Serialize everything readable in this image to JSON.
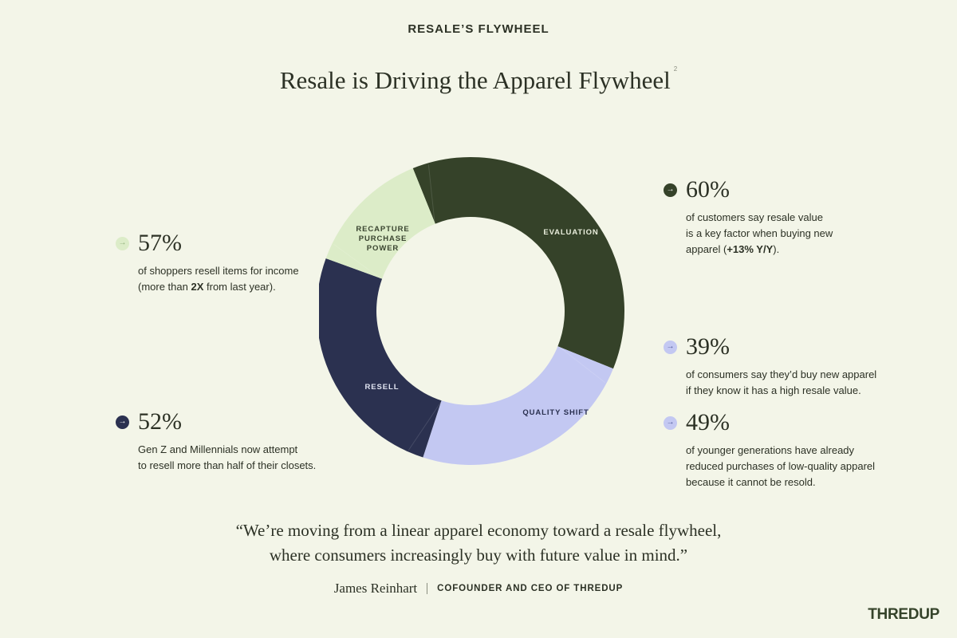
{
  "header": {
    "eyebrow": "RESALE’S FLYWHEEL",
    "title": "Resale is Driving the Apparel Flywheel",
    "footnote": "2"
  },
  "flywheel": {
    "segments": [
      {
        "label_lines": [
          "EVALUATION"
        ],
        "color": "#354229",
        "text_color": "#e9eddc"
      },
      {
        "label_lines": [
          "QUALITY SHIFT"
        ],
        "color": "#c3c8f2",
        "text_color": "#2a3050"
      },
      {
        "label_lines": [
          "RESELL"
        ],
        "color": "#2b3150",
        "text_color": "#e2e5f2"
      },
      {
        "label_lines": [
          "RECAPTURE",
          "PURCHASE",
          "POWER"
        ],
        "color": "#dcecc8",
        "text_color": "#3a4530"
      }
    ]
  },
  "stats": {
    "s57": {
      "pct": "57%",
      "lines": [
        "of shoppers resell items for income",
        "(more than ",
        "2X",
        " from last year)."
      ],
      "dot_color": "#dcecc8",
      "arrow_color": "#8fb07a"
    },
    "s52": {
      "pct": "52%",
      "lines": [
        "Gen Z and Millennials now attempt",
        "to resell more than half of their closets."
      ],
      "dot_color": "#2b3150",
      "arrow_color": "#ffffff"
    },
    "s60": {
      "pct": "60%",
      "lines": [
        "of customers say resale value",
        "is a key factor when buying new",
        "apparel (",
        "+13% Y/Y",
        ")."
      ],
      "dot_color": "#354229",
      "arrow_color": "#ffffff"
    },
    "s39": {
      "pct": "39%",
      "lines": [
        "of consumers say they’d buy new apparel",
        "if they know it has a high resale value."
      ],
      "dot_color": "#c3c8f2",
      "arrow_color": "#4b5596"
    },
    "s49": {
      "pct": "49%",
      "lines": [
        "of younger generations have already",
        "reduced purchases of low-quality apparel",
        "because it cannot be resold."
      ],
      "dot_color": "#c3c8f2",
      "arrow_color": "#4b5596"
    }
  },
  "quote": {
    "line1": "“We’re moving from a linear apparel economy toward a resale flywheel,",
    "line2": "where consumers increasingly buy with future value in mind.”",
    "author": "James Reinhart",
    "role": "COFOUNDER AND CEO OF THREDUP"
  },
  "brand": {
    "logo": "THREDUP"
  },
  "icons": {
    "arrow": "→"
  }
}
